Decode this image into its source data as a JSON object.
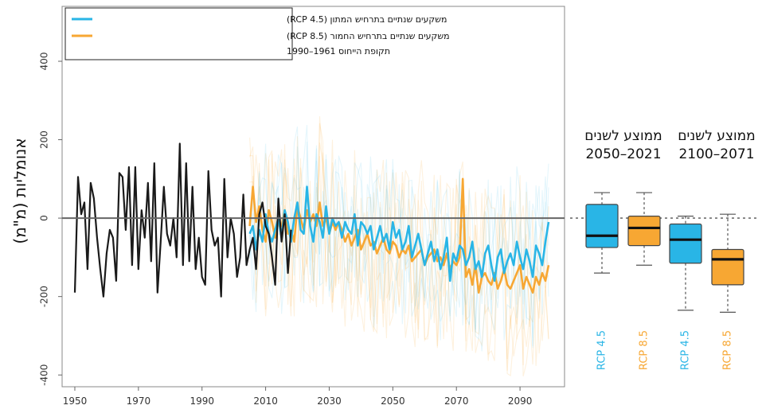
{
  "chart_data": [
    {
      "type": "line",
      "ylabel": "אנומליות (מ\"מ)",
      "xlim": [
        1946,
        2104
      ],
      "ylim": [
        -430,
        540
      ],
      "x_ticks": [
        "1950",
        "1970",
        "1990",
        "2010",
        "2030",
        "2050",
        "2070",
        "2090"
      ],
      "y_ticks": [
        "400",
        "200",
        "0",
        "-200",
        "-400"
      ],
      "legend": {
        "placement": "top-left",
        "entries": [
          {
            "label": "משקעים שנתיים בתרחיש המתון (RCP 4.5)",
            "color": "#29b5e6"
          },
          {
            "label": "משקעים שנתיים בתרחיש החמור (RCP 8.5)",
            "color": "#f7a733"
          }
        ],
        "note": "תקופת הייחוס 1961–1990"
      },
      "series": [
        {
          "name": "observed",
          "color": "#1a1a1a",
          "x": [
            1950,
            1951,
            1952,
            1953,
            1954,
            1955,
            1956,
            1957,
            1958,
            1959,
            1960,
            1961,
            1962,
            1963,
            1964,
            1965,
            1966,
            1967,
            1968,
            1969,
            1970,
            1971,
            1972,
            1973,
            1974,
            1975,
            1976,
            1977,
            1978,
            1979,
            1980,
            1981,
            1982,
            1983,
            1984,
            1985,
            1986,
            1987,
            1988,
            1989,
            1990,
            1991,
            1992,
            1993,
            1994,
            1995,
            1996,
            1997,
            1998,
            1999,
            2000,
            2001,
            2002,
            2003,
            2004,
            2005,
            2006,
            2007,
            2008,
            2009,
            2010,
            2011,
            2012,
            2013,
            2014,
            2015,
            2016,
            2017,
            2018
          ],
          "values": [
            -190,
            105,
            10,
            40,
            -130,
            90,
            50,
            -50,
            -130,
            -200,
            -90,
            -30,
            -50,
            -160,
            115,
            105,
            -30,
            130,
            -120,
            130,
            -130,
            20,
            -50,
            90,
            -110,
            140,
            -190,
            -60,
            80,
            -40,
            -70,
            0,
            -100,
            190,
            -120,
            140,
            -110,
            80,
            -130,
            -50,
            -150,
            -170,
            120,
            -30,
            -70,
            -50,
            -200,
            100,
            -100,
            0,
            -40,
            -150,
            -100,
            60,
            -120,
            -80,
            -50,
            -130,
            10,
            40,
            -20,
            -40,
            -100,
            -170,
            50,
            -60,
            10,
            -140,
            -30
          ],
          "width": 2.2
        },
        {
          "name": "RCP 4.5",
          "color": "#29b5e6",
          "x": [
            2005,
            2006,
            2007,
            2008,
            2009,
            2010,
            2011,
            2012,
            2013,
            2014,
            2015,
            2016,
            2017,
            2018,
            2019,
            2020,
            2021,
            2022,
            2023,
            2024,
            2025,
            2026,
            2027,
            2028,
            2029,
            2030,
            2031,
            2032,
            2033,
            2034,
            2035,
            2036,
            2037,
            2038,
            2039,
            2040,
            2041,
            2042,
            2043,
            2044,
            2045,
            2046,
            2047,
            2048,
            2049,
            2050,
            2051,
            2052,
            2053,
            2054,
            2055,
            2056,
            2057,
            2058,
            2059,
            2060,
            2061,
            2062,
            2063,
            2064,
            2065,
            2066,
            2067,
            2068,
            2069,
            2070,
            2071,
            2072,
            2073,
            2074,
            2075,
            2076,
            2077,
            2078,
            2079,
            2080,
            2081,
            2082,
            2083,
            2084,
            2085,
            2086,
            2087,
            2088,
            2089,
            2090,
            2091,
            2092,
            2093,
            2094,
            2095,
            2096,
            2097,
            2098,
            2099
          ],
          "values": [
            -40,
            -20,
            -80,
            -30,
            -60,
            10,
            -40,
            -60,
            -30,
            0,
            -50,
            20,
            -10,
            -60,
            0,
            40,
            -30,
            -40,
            80,
            -20,
            -60,
            10,
            -10,
            -50,
            30,
            -40,
            0,
            -20,
            -10,
            -50,
            -10,
            -30,
            -40,
            10,
            -70,
            -10,
            -20,
            -40,
            -20,
            -80,
            -50,
            -20,
            -60,
            -40,
            -80,
            -10,
            -50,
            -30,
            -80,
            -60,
            -20,
            -100,
            -70,
            -40,
            -80,
            -120,
            -90,
            -60,
            -110,
            -80,
            -130,
            -100,
            -50,
            -160,
            -90,
            -110,
            -70,
            -80,
            -120,
            -100,
            -60,
            -130,
            -110,
            -150,
            -90,
            -70,
            -120,
            -160,
            -100,
            -80,
            -140,
            -110,
            -90,
            -120,
            -60,
            -100,
            -130,
            -80,
            -110,
            -150,
            -70,
            -90,
            -120,
            -60,
            -10
          ],
          "width": 2.6
        },
        {
          "name": "RCP 8.5",
          "color": "#f7a733",
          "x": [
            2005,
            2006,
            2007,
            2008,
            2009,
            2010,
            2011,
            2012,
            2013,
            2014,
            2015,
            2016,
            2017,
            2018,
            2019,
            2020,
            2021,
            2022,
            2023,
            2024,
            2025,
            2026,
            2027,
            2028,
            2029,
            2030,
            2031,
            2032,
            2033,
            2034,
            2035,
            2036,
            2037,
            2038,
            2039,
            2040,
            2041,
            2042,
            2043,
            2044,
            2045,
            2046,
            2047,
            2048,
            2049,
            2050,
            2051,
            2052,
            2053,
            2054,
            2055,
            2056,
            2057,
            2058,
            2059,
            2060,
            2061,
            2062,
            2063,
            2064,
            2065,
            2066,
            2067,
            2068,
            2069,
            2070,
            2071,
            2072,
            2073,
            2074,
            2075,
            2076,
            2077,
            2078,
            2079,
            2080,
            2081,
            2082,
            2083,
            2084,
            2085,
            2086,
            2087,
            2088,
            2089,
            2090,
            2091,
            2092,
            2093,
            2094,
            2095,
            2096,
            2097,
            2098,
            2099
          ],
          "values": [
            -20,
            80,
            -10,
            30,
            -30,
            -60,
            20,
            -10,
            -50,
            -10,
            -20,
            20,
            -40,
            -30,
            -60,
            30,
            0,
            -30,
            20,
            -10,
            10,
            -20,
            40,
            -20,
            0,
            -40,
            -10,
            -30,
            -10,
            -30,
            -60,
            -40,
            -70,
            -50,
            -30,
            -80,
            -60,
            -40,
            -70,
            -60,
            -90,
            -70,
            -50,
            -80,
            -90,
            -60,
            -70,
            -100,
            -80,
            -90,
            -70,
            -110,
            -100,
            -90,
            -80,
            -120,
            -100,
            -90,
            -80,
            -110,
            -100,
            -120,
            -90,
            -130,
            -110,
            -120,
            -100,
            100,
            -150,
            -130,
            -170,
            -120,
            -190,
            -150,
            -140,
            -160,
            -170,
            -140,
            -180,
            -160,
            -130,
            -170,
            -180,
            -160,
            -140,
            -120,
            -180,
            -150,
            -170,
            -190,
            -150,
            -170,
            -140,
            -160,
            -120
          ],
          "width": 2.6
        }
      ]
    },
    {
      "type": "box",
      "headers": [
        "ממוצע לשנים",
        "2050–2021",
        "ממוצע לשנים",
        "2100–2071"
      ],
      "boxes": [
        {
          "label": "RCP 4.5",
          "color": "#29b5e6",
          "period": "2050–2021",
          "q1": -75,
          "median": -45,
          "q3": 35,
          "whisker_low": -140,
          "whisker_high": 65
        },
        {
          "label": "RCP 8.5",
          "color": "#f7a733",
          "period": "2050–2021",
          "q1": -70,
          "median": -25,
          "q3": 5,
          "whisker_low": -120,
          "whisker_high": 65
        },
        {
          "label": "RCP 4.5",
          "color": "#29b5e6",
          "period": "2100–2071",
          "q1": -115,
          "median": -55,
          "q3": -15,
          "whisker_low": -235,
          "whisker_high": 5
        },
        {
          "label": "RCP 8.5",
          "color": "#f7a733",
          "period": "2100–2071",
          "q1": -170,
          "median": -105,
          "q3": -80,
          "whisker_low": -240,
          "whisker_high": 10
        }
      ]
    }
  ]
}
